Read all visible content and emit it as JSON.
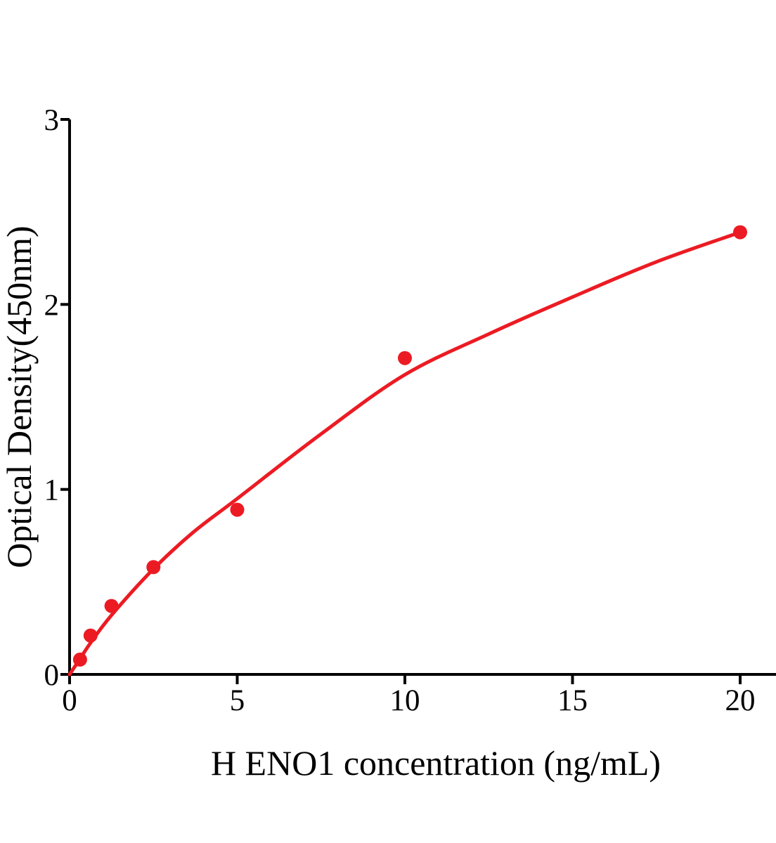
{
  "chart_data": {
    "type": "scatter",
    "title": "",
    "xlabel": "H ENO1 concentration (ng/mL)",
    "ylabel": "Optical Density(450nm)",
    "xlim": [
      0,
      21.1
    ],
    "ylim": [
      0,
      3
    ],
    "x_ticks": [
      0,
      5,
      10,
      15,
      20
    ],
    "y_ticks": [
      0,
      1,
      2,
      3
    ],
    "grid": false,
    "legend": null,
    "colors": {
      "points": "#EC1B23",
      "curve": "#EC1B23",
      "axis": "#000000",
      "text": "#000000",
      "background": "#FFFFFF"
    },
    "series": [
      {
        "name": "standard-points",
        "type": "scatter",
        "marker": "circle",
        "x": [
          0.313,
          0.625,
          1.25,
          2.5,
          5,
          10,
          20
        ],
        "y": [
          0.08,
          0.21,
          0.37,
          0.58,
          0.89,
          1.71,
          2.39
        ]
      },
      {
        "name": "fitted-curve",
        "type": "line",
        "x": [
          0,
          0.313,
          0.625,
          1.25,
          2.5,
          3.7,
          5,
          7.5,
          10,
          12.5,
          15,
          17.5,
          20
        ],
        "y": [
          0,
          0.085,
          0.17,
          0.32,
          0.57,
          0.77,
          0.95,
          1.3,
          1.62,
          1.84,
          2.04,
          2.23,
          2.39
        ]
      }
    ]
  }
}
